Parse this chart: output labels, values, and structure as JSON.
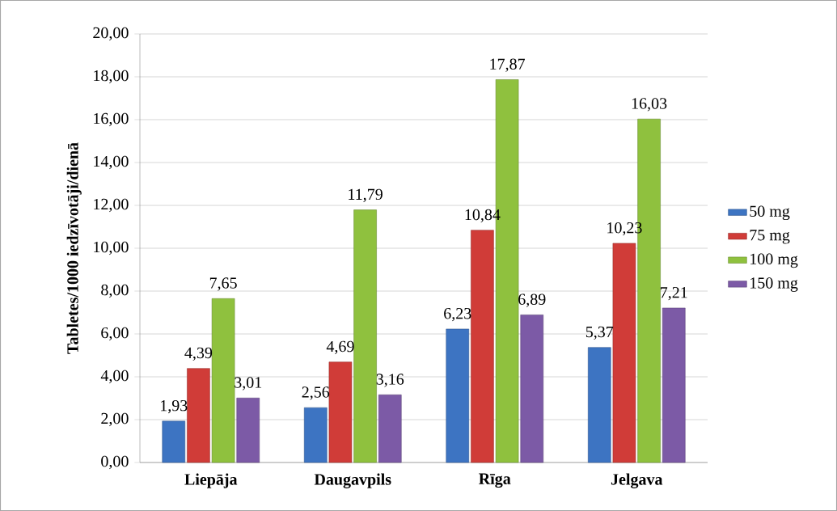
{
  "chart_data": {
    "type": "bar",
    "ylabel": "Tabletes/1000 iedzīvotāji/dienā",
    "categories": [
      "Liepāja",
      "Daugavpils",
      "Rīga",
      "Jelgava"
    ],
    "series": [
      {
        "name": "50 mg",
        "color": "#3d74c2",
        "values": [
          1.93,
          2.56,
          6.23,
          5.37
        ],
        "value_labels": [
          "1,93",
          "2,56",
          "6,23",
          "5,37"
        ]
      },
      {
        "name": "75 mg",
        "color": "#d03c38",
        "values": [
          4.39,
          4.69,
          10.84,
          10.23
        ],
        "value_labels": [
          "4,39",
          "4,69",
          "10,84",
          "10,23"
        ]
      },
      {
        "name": "100 mg",
        "color": "#8fc13e",
        "values": [
          7.65,
          11.79,
          17.87,
          16.03
        ],
        "value_labels": [
          "7,65",
          "11,79",
          "17,87",
          "16,03"
        ]
      },
      {
        "name": "150 mg",
        "color": "#7c5aa6",
        "values": [
          3.01,
          3.16,
          6.89,
          7.21
        ],
        "value_labels": [
          "3,01",
          "3,16",
          "6,89",
          "7,21"
        ]
      }
    ],
    "ylim": [
      0,
      20
    ],
    "yticks": [
      {
        "value": 0,
        "label": "0,00"
      },
      {
        "value": 2,
        "label": "2,00"
      },
      {
        "value": 4,
        "label": "4,00"
      },
      {
        "value": 6,
        "label": "6,00"
      },
      {
        "value": 8,
        "label": "8,00"
      },
      {
        "value": 10,
        "label": "10,00"
      },
      {
        "value": 12,
        "label": "12,00"
      },
      {
        "value": 14,
        "label": "14,00"
      },
      {
        "value": 16,
        "label": "16,00"
      },
      {
        "value": 18,
        "label": "18,00"
      },
      {
        "value": 20,
        "label": "20,00"
      }
    ],
    "grid": "y",
    "legend": "right"
  }
}
